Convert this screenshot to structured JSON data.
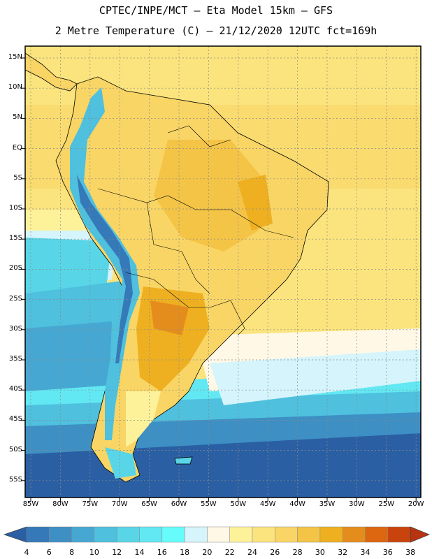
{
  "title": {
    "line1": "CPTEC/INPE/MCT —  Eta Model 15km — GFS",
    "line2": "2 Metre Temperature (C) — 21/12/2020 12UTC fct=169h"
  },
  "axes": {
    "lat_labels": [
      "15N",
      "10N",
      "5N",
      "EQ",
      "5S",
      "10S",
      "15S",
      "20S",
      "25S",
      "30S",
      "35S",
      "40S",
      "45S",
      "50S",
      "55S"
    ],
    "lon_labels": [
      "85W",
      "80W",
      "75W",
      "70W",
      "65W",
      "60W",
      "55W",
      "50W",
      "45W",
      "40W",
      "35W",
      "30W",
      "25W",
      "20W"
    ]
  },
  "colorbar": {
    "labels": [
      "4",
      "6",
      "8",
      "10",
      "12",
      "14",
      "16",
      "18",
      "20",
      "22",
      "24",
      "26",
      "28",
      "30",
      "32",
      "34",
      "36",
      "38"
    ],
    "colors": [
      "#2b5fa3",
      "#3579b8",
      "#3d8fc4",
      "#46a8d2",
      "#4fc0de",
      "#58d6e8",
      "#62e8f2",
      "#66fcfc",
      "#d5f4fb",
      "#fff8e6",
      "#fdf29a",
      "#fbe47d",
      "#f8d565",
      "#f4c447",
      "#eeb021",
      "#e58d1c",
      "#dd6610",
      "#c9440c",
      "#b8330f"
    ]
  },
  "map": {
    "ocean_cold": "#2b5fa3",
    "ocean_mid": "#46a8d2",
    "ocean_warm": "#fbe47d",
    "land_warm": "#f8d565",
    "land_hot": "#eeb021",
    "andes": "#4fc0de"
  }
}
